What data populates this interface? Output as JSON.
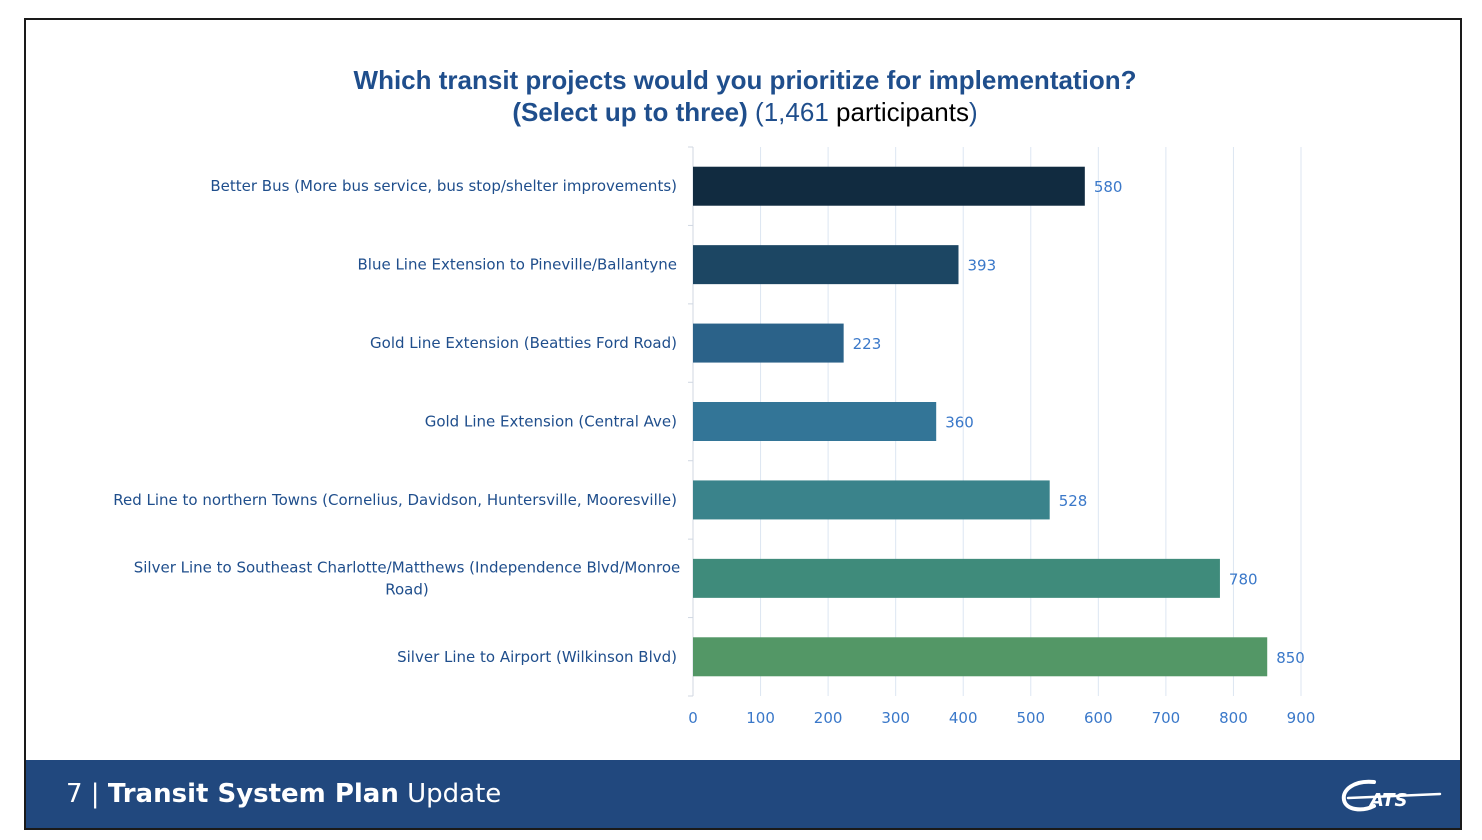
{
  "slide": {
    "title_line1": "Which transit projects would you prioritize for implementation?",
    "title_line2_bold": "(Select up to three)",
    "title_line2_open": "(",
    "title_line2_count": "1,461",
    "title_line2_participants": " participants",
    "title_line2_close": ")"
  },
  "footer": {
    "page_number": "7",
    "separator": " | ",
    "title_bold": "Transit System Plan",
    "title_regular": " Update",
    "logo_text": "CATS"
  },
  "colors": {
    "title": "#1f4e8c",
    "footer_bg": "#21487e",
    "bars": [
      "#112b40",
      "#1c4663",
      "#2b6289",
      "#337597",
      "#3a838b",
      "#3f8b7b",
      "#539766"
    ]
  },
  "chart_data": {
    "type": "bar",
    "orientation": "horizontal",
    "title": "Which transit projects would you prioritize for implementation? (Select up to three) (1,461 participants)",
    "categories": [
      "Better Bus (More bus service, bus stop/shelter improvements)",
      "Blue Line Extension to Pineville/Ballantyne",
      "Gold Line Extension (Beatties Ford Road)",
      "Gold Line Extension (Central Ave)",
      "Red Line to northern Towns (Cornelius, Davidson, Huntersville, Mooresville)",
      "Silver Line to Southeast Charlotte/Matthews (Independence Blvd/Monroe Road)",
      "Silver Line to Airport (Wilkinson Blvd)"
    ],
    "category_lines": [
      [
        "Better Bus (More bus service, bus stop/shelter improvements)"
      ],
      [
        "Blue Line Extension to Pineville/Ballantyne"
      ],
      [
        "Gold Line Extension (Beatties Ford Road)"
      ],
      [
        "Gold Line Extension (Central Ave)"
      ],
      [
        "Red Line to northern Towns (Cornelius, Davidson, Huntersville, Mooresville)"
      ],
      [
        "Silver Line to Southeast Charlotte/Matthews (Independence Blvd/Monroe",
        "Road)"
      ],
      [
        "Silver Line to Airport (Wilkinson Blvd)"
      ]
    ],
    "values": [
      580,
      393,
      223,
      360,
      528,
      780,
      850
    ],
    "data_labels": [
      "580",
      "393",
      "223",
      "360",
      "528",
      "780",
      "850"
    ],
    "xlim": [
      0,
      900
    ],
    "xticks": [
      0,
      100,
      200,
      300,
      400,
      500,
      600,
      700,
      800,
      900
    ],
    "xtick_labels": [
      "0",
      "100",
      "200",
      "300",
      "400",
      "500",
      "600",
      "700",
      "800",
      "900"
    ],
    "grid": true,
    "legend": "none",
    "xlabel": "",
    "ylabel": ""
  }
}
